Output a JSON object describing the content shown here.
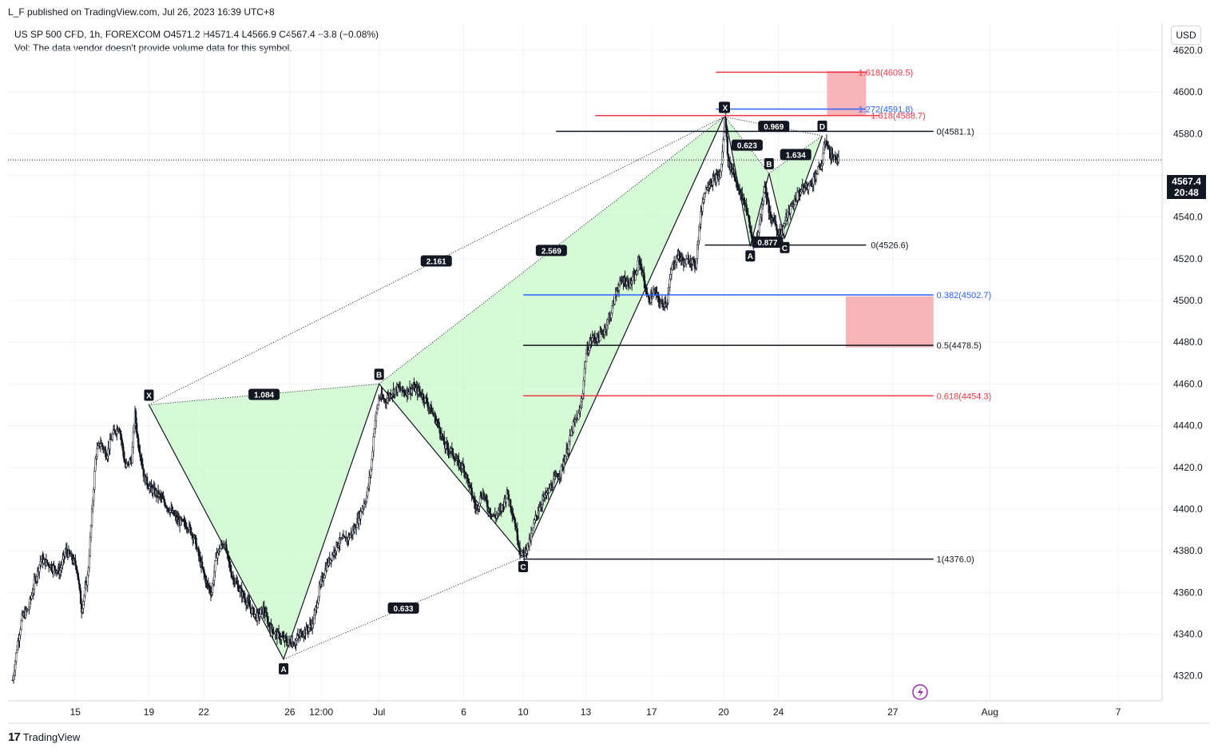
{
  "header": {
    "published": "L_F published on TradingView.com, Jul 26, 2023 16:39 UTC+8",
    "symbol_line": "US SP 500 CFD, 1h, FOREXCOM  O4571.2  H4571.4  L4566.9  C4567.4  −3.8 (−0.08%)",
    "volume_line": "Vol: The data vendor doesn't provide volume data for this symbol.",
    "currency": "USD"
  },
  "footer": {
    "brand": "TradingView",
    "logo": "17"
  },
  "last_price": {
    "value": "4567.4",
    "countdown": "20:48",
    "price": 4567.4
  },
  "chart_data": {
    "type": "candlestick",
    "symbol": "US SP 500 CFD",
    "interval": "1h",
    "y_ticks": [
      4320,
      4340,
      4360,
      4380,
      4400,
      4420,
      4440,
      4460,
      4480,
      4500,
      4520,
      4540,
      4560,
      4580,
      4600,
      4620
    ],
    "y_tick_labels": [
      "4320.0",
      "4340.0",
      "4360.0",
      "4380.0",
      "4400.0",
      "4420.0",
      "4440.0",
      "4460.0",
      "4480.0",
      "4500.0",
      "4520.0",
      "4540.0",
      "",
      "4580.0",
      "4600.0",
      "4620.0"
    ],
    "ylim": [
      4308,
      4633
    ],
    "x_ticks": [
      {
        "label": "15",
        "t": 12
      },
      {
        "label": "19",
        "t": 59
      },
      {
        "label": "22",
        "t": 94
      },
      {
        "label": "26",
        "t": 149
      },
      {
        "label": "12:00",
        "t": 169
      },
      {
        "label": "Jul",
        "t": 206
      },
      {
        "label": "6",
        "t": 260
      },
      {
        "label": "10",
        "t": 298
      },
      {
        "label": "13",
        "t": 338
      },
      {
        "label": "17",
        "t": 380
      },
      {
        "label": "20",
        "t": 426
      },
      {
        "label": "24",
        "t": 461
      },
      {
        "label": "27",
        "t": 534
      },
      {
        "label": "Aug",
        "t": 596
      },
      {
        "label": "7",
        "t": 678
      }
    ],
    "xlim": [
      -31,
      706
    ],
    "price_anchors": [
      [
        -28,
        4318
      ],
      [
        -25,
        4335
      ],
      [
        -22,
        4348
      ],
      [
        -18,
        4352
      ],
      [
        -14,
        4365
      ],
      [
        -10,
        4376
      ],
      [
        -6,
        4374
      ],
      [
        -2,
        4372
      ],
      [
        2,
        4370
      ],
      [
        6,
        4380
      ],
      [
        10,
        4376
      ],
      [
        13,
        4372
      ],
      [
        16,
        4352
      ],
      [
        20,
        4368
      ],
      [
        25,
        4426
      ],
      [
        28,
        4432
      ],
      [
        32,
        4426
      ],
      [
        36,
        4436
      ],
      [
        40,
        4440
      ],
      [
        44,
        4420
      ],
      [
        48,
        4424
      ],
      [
        50,
        4446
      ],
      [
        52,
        4432
      ],
      [
        54,
        4425
      ],
      [
        56,
        4415
      ],
      [
        60,
        4410
      ],
      [
        66,
        4406
      ],
      [
        72,
        4400
      ],
      [
        78,
        4394
      ],
      [
        84,
        4392
      ],
      [
        88,
        4386
      ],
      [
        92,
        4374
      ],
      [
        96,
        4364
      ],
      [
        99,
        4360
      ],
      [
        102,
        4378
      ],
      [
        107,
        4384
      ],
      [
        112,
        4368
      ],
      [
        118,
        4360
      ],
      [
        124,
        4352
      ],
      [
        128,
        4348
      ],
      [
        132,
        4352
      ],
      [
        136,
        4344
      ],
      [
        140,
        4340
      ],
      [
        144,
        4338
      ],
      [
        148,
        4336
      ],
      [
        152,
        4336
      ],
      [
        156,
        4340
      ],
      [
        160,
        4342
      ],
      [
        164,
        4346
      ],
      [
        168,
        4362
      ],
      [
        172,
        4372
      ],
      [
        176,
        4378
      ],
      [
        180,
        4384
      ],
      [
        186,
        4386
      ],
      [
        190,
        4390
      ],
      [
        194,
        4398
      ],
      [
        198,
        4406
      ],
      [
        201,
        4420
      ],
      [
        203,
        4440
      ],
      [
        206,
        4454
      ],
      [
        210,
        4452
      ],
      [
        214,
        4456
      ],
      [
        218,
        4458
      ],
      [
        222,
        4456
      ],
      [
        228,
        4458
      ],
      [
        232,
        4456
      ],
      [
        236,
        4452
      ],
      [
        240,
        4446
      ],
      [
        244,
        4440
      ],
      [
        248,
        4430
      ],
      [
        252,
        4428
      ],
      [
        256,
        4422
      ],
      [
        260,
        4420
      ],
      [
        264,
        4410
      ],
      [
        268,
        4400
      ],
      [
        272,
        4408
      ],
      [
        276,
        4400
      ],
      [
        280,
        4396
      ],
      [
        284,
        4400
      ],
      [
        288,
        4408
      ],
      [
        292,
        4396
      ],
      [
        296,
        4380
      ],
      [
        298,
        4378
      ],
      [
        302,
        4384
      ],
      [
        306,
        4396
      ],
      [
        310,
        4404
      ],
      [
        314,
        4408
      ],
      [
        318,
        4414
      ],
      [
        322,
        4418
      ],
      [
        326,
        4428
      ],
      [
        330,
        4440
      ],
      [
        334,
        4446
      ],
      [
        336,
        4456
      ],
      [
        338,
        4474
      ],
      [
        342,
        4482
      ],
      [
        346,
        4482
      ],
      [
        350,
        4486
      ],
      [
        354,
        4494
      ],
      [
        358,
        4506
      ],
      [
        362,
        4510
      ],
      [
        366,
        4508
      ],
      [
        370,
        4512
      ],
      [
        372,
        4520
      ],
      [
        374,
        4514
      ],
      [
        376,
        4506
      ],
      [
        378,
        4500
      ],
      [
        382,
        4504
      ],
      [
        386,
        4498
      ],
      [
        390,
        4500
      ],
      [
        393,
        4516
      ],
      [
        397,
        4522
      ],
      [
        401,
        4518
      ],
      [
        405,
        4520
      ],
      [
        408,
        4516
      ],
      [
        410,
        4532
      ],
      [
        413,
        4550
      ],
      [
        416,
        4556
      ],
      [
        420,
        4558
      ],
      [
        424,
        4560
      ],
      [
        427,
        4588
      ],
      [
        429,
        4566
      ],
      [
        432,
        4562
      ],
      [
        436,
        4552
      ],
      [
        440,
        4546
      ],
      [
        444,
        4530
      ],
      [
        447,
        4528
      ],
      [
        450,
        4542
      ],
      [
        452,
        4556
      ],
      [
        454,
        4548
      ],
      [
        456,
        4538
      ],
      [
        458,
        4540
      ],
      [
        460,
        4534
      ],
      [
        463,
        4532
      ],
      [
        466,
        4540
      ],
      [
        470,
        4546
      ],
      [
        474,
        4552
      ],
      [
        478,
        4554
      ],
      [
        482,
        4556
      ],
      [
        486,
        4562
      ],
      [
        489,
        4566
      ],
      [
        491,
        4578
      ],
      [
        494,
        4570
      ],
      [
        497,
        4568
      ],
      [
        500,
        4567.4
      ]
    ],
    "patterns": [
      {
        "name": "large",
        "points": [
          {
            "label": "X",
            "t": 59,
            "price": 4450
          },
          {
            "label": "A",
            "t": 145,
            "price": 4328
          },
          {
            "label": "B",
            "t": 206,
            "price": 4460
          },
          {
            "label": "C",
            "t": 298,
            "price": 4377
          },
          {
            "label": "D",
            "t": 426,
            "price": 4588
          }
        ],
        "ratios": [
          {
            "text": "1.084",
            "between": [
              "X",
              "B"
            ]
          },
          {
            "text": "0.633",
            "between": [
              "A",
              "C"
            ]
          },
          {
            "text": "2.569",
            "between": [
              "B",
              "D"
            ]
          },
          {
            "text": "2.161",
            "between": [
              "X",
              "D"
            ]
          }
        ],
        "fill": "#c8f7c8"
      },
      {
        "name": "small",
        "points": [
          {
            "label": "X",
            "t": 427,
            "price": 4588
          },
          {
            "label": "A",
            "t": 443,
            "price": 4526
          },
          {
            "label": "B",
            "t": 455,
            "price": 4561
          },
          {
            "label": "C",
            "t": 465,
            "price": 4530
          },
          {
            "label": "D",
            "t": 489,
            "price": 4579
          }
        ],
        "ratios": [
          {
            "text": "0.623",
            "between": [
              "X",
              "B"
            ]
          },
          {
            "text": "0.877",
            "between": [
              "A",
              "C"
            ]
          },
          {
            "text": "1.634",
            "between": [
              "B",
              "D"
            ]
          },
          {
            "text": "0.969",
            "between": [
              "X",
              "D"
            ]
          }
        ],
        "fill": "#c8f7c8"
      }
    ],
    "levels": [
      {
        "label": "1.618(4609.5)",
        "price": 4609.5,
        "t0": 421,
        "t1": 517,
        "color": "#f23645",
        "label_t": 512
      },
      {
        "label": "1.272(4591.8)",
        "price": 4591.8,
        "t0": 421,
        "t1": 517,
        "color": "#2962ff",
        "label_t": 512
      },
      {
        "label": "1.618(4588.7)",
        "price": 4588.7,
        "t0": 344,
        "t1": 525,
        "color": "#f23645",
        "label_t": 520
      },
      {
        "label": "0(4581.1)",
        "price": 4581.1,
        "t0": 319,
        "t1": 560,
        "color": "#131722",
        "label_t": 562
      },
      {
        "label": "0(4526.6)",
        "price": 4526.6,
        "t0": 414,
        "t1": 517,
        "color": "#131722",
        "label_t": 520
      },
      {
        "label": "0.382(4502.7)",
        "price": 4502.7,
        "t0": 298,
        "t1": 560,
        "color": "#2962ff",
        "label_t": 562
      },
      {
        "label": "0.5(4478.5)",
        "price": 4478.5,
        "t0": 298,
        "t1": 560,
        "color": "#131722",
        "label_t": 562
      },
      {
        "label": "0.618(4454.3)",
        "price": 4454.3,
        "t0": 298,
        "t1": 560,
        "color": "#f23645",
        "label_t": 562
      },
      {
        "label": "1(4376.0)",
        "price": 4376.0,
        "t0": 298,
        "t1": 560,
        "color": "#131722",
        "label_t": 562
      }
    ],
    "zones": [
      {
        "t0": 492,
        "t1": 517,
        "p0": 4588.7,
        "p1": 4610
      },
      {
        "t0": 504,
        "t1": 560,
        "p0": 4477.5,
        "p1": 4502
      }
    ],
    "colors": {
      "up": "#131722",
      "down": "#131722",
      "pattern_line": "#131722",
      "zone": "#f7a1a8"
    }
  }
}
